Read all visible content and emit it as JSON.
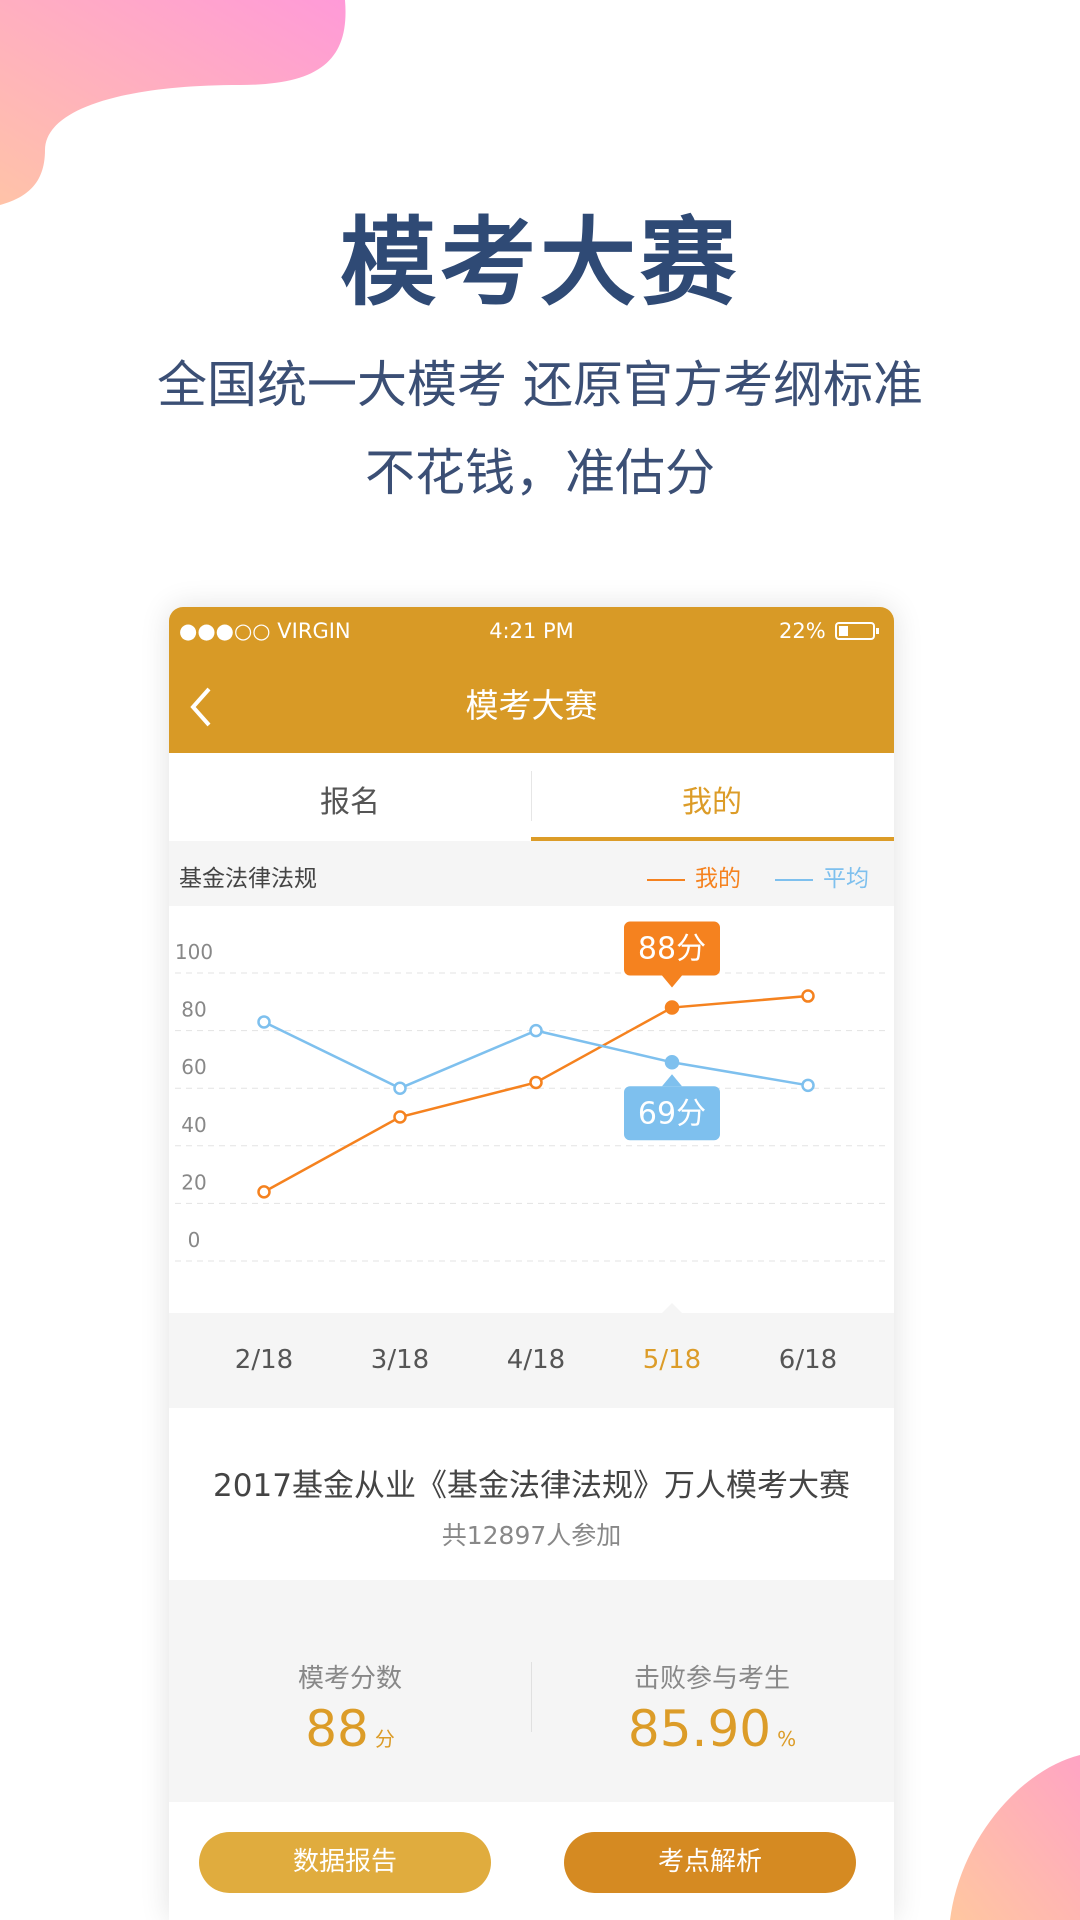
{
  "header": {
    "title": "模考大赛",
    "subtitle_line1": "全国统一大模考 还原官方考纲标准",
    "subtitle_line2": "不花钱，准估分"
  },
  "phone": {
    "status_bar": {
      "carrier": "●●●○○ VIRGIN",
      "time": "4:21 PM",
      "battery": "22%"
    },
    "nav_title": "模考大赛",
    "tabs": [
      "报名",
      "我的"
    ],
    "subject": "基金法律法规",
    "exam_title": "2017基金从业《基金法律法规》万人模考大赛",
    "participants": "共12897人参加",
    "stats": [
      {
        "label": "模考分数",
        "value": "88",
        "unit": "分"
      },
      {
        "label": "击败参与考生",
        "value": "85.90",
        "unit": "%"
      }
    ],
    "buttons": [
      "数据报告",
      "考点解析"
    ]
  },
  "chart_data": {
    "type": "line",
    "categories": [
      "2/18",
      "3/18",
      "4/18",
      "5/18",
      "6/18"
    ],
    "series": [
      {
        "name": "我的",
        "color": "#f5821f",
        "values": [
          24,
          50,
          62,
          88,
          92
        ],
        "value_labels": [
          null,
          null,
          null,
          "88分",
          null
        ]
      },
      {
        "name": "平均",
        "color": "#7ec0ee",
        "values": [
          83,
          60,
          80,
          69,
          61
        ],
        "value_labels": [
          null,
          null,
          null,
          "69分",
          null
        ]
      }
    ],
    "ylim": [
      0,
      100
    ],
    "yticks": [
      0,
      20,
      40,
      60,
      80,
      100
    ],
    "grid": true
  }
}
